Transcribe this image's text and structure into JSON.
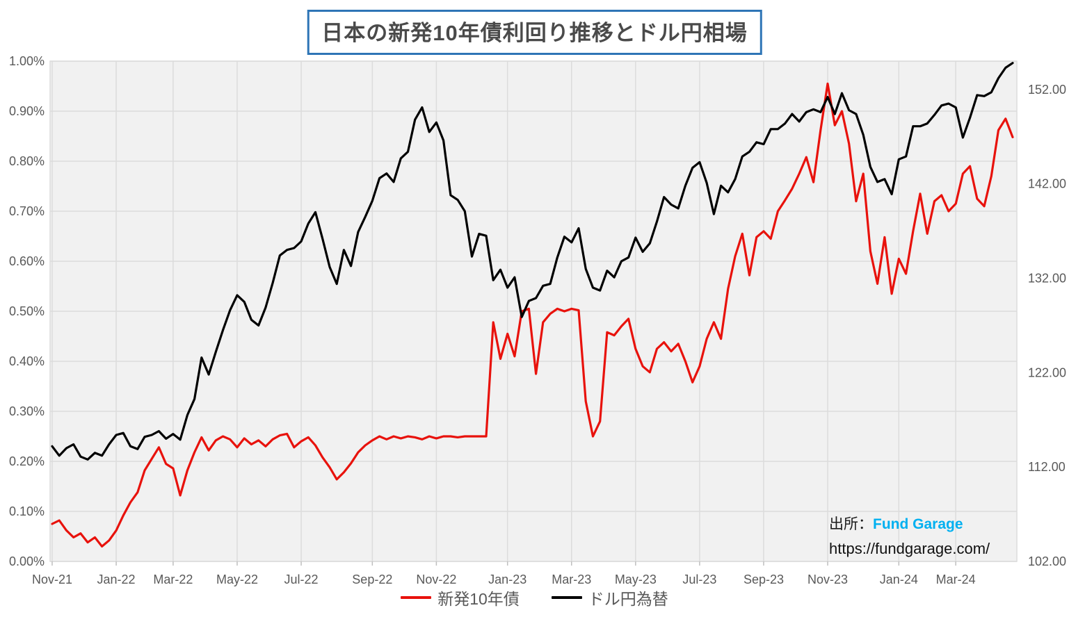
{
  "title": "日本の新発10年債利回り推移とドル円相場",
  "legend": {
    "bond_label": "新発10年債",
    "fx_label": "ドル円為替"
  },
  "source": {
    "prefix": "出所：",
    "brand": "Fund Garage",
    "url": "https://fundgarage.com/"
  },
  "colors": {
    "bond_line": "#e8120c",
    "fx_line": "#000000",
    "title_border": "#2e75b6",
    "title_text": "#4a4a4a",
    "axis_text": "#595959",
    "grid": "#dcdcdc",
    "plot_bg": "#f1f1f1",
    "brand_text": "#00b0f0",
    "page_bg": "#ffffff"
  },
  "chart_data": {
    "type": "line",
    "title": "日本の新発10年債利回り推移とドル円相場",
    "grid": true,
    "legend_position": "bottom",
    "left_axis": {
      "min": 0.0,
      "max": 1.0,
      "tick_labels": [
        "0.00%",
        "0.10%",
        "0.20%",
        "0.30%",
        "0.40%",
        "0.50%",
        "0.60%",
        "0.70%",
        "0.80%",
        "0.90%",
        "1.00%"
      ]
    },
    "right_axis": {
      "min": 102.0,
      "max": 155.0,
      "tick_values": [
        102,
        112,
        122,
        132,
        142,
        152
      ],
      "tick_labels": [
        "102.00",
        "112.00",
        "122.00",
        "132.00",
        "142.00",
        "152.00"
      ]
    },
    "x_tick_labels": [
      "Nov-21",
      "Jan-22",
      "Mar-22",
      "May-22",
      "Jul-22",
      "Sep-22",
      "Nov-22",
      "Jan-23",
      "Mar-23",
      "May-23",
      "Jul-23",
      "Sep-23",
      "Nov-23",
      "Jan-24",
      "Mar-24"
    ],
    "x_tick_indices": [
      0,
      9,
      17,
      26,
      35,
      45,
      54,
      64,
      73,
      82,
      91,
      100,
      109,
      119,
      127
    ],
    "x_range_note": "weekly samples, Nov 2021 - late Apr 2024",
    "series": [
      {
        "name": "新発10年債",
        "axis": "left",
        "color": "#e8120c",
        "unit": "%",
        "values": [
          0.075,
          0.082,
          0.062,
          0.048,
          0.056,
          0.038,
          0.048,
          0.03,
          0.042,
          0.062,
          0.092,
          0.118,
          0.138,
          0.182,
          0.205,
          0.228,
          0.195,
          0.186,
          0.132,
          0.182,
          0.218,
          0.248,
          0.222,
          0.242,
          0.25,
          0.244,
          0.228,
          0.246,
          0.234,
          0.242,
          0.23,
          0.244,
          0.252,
          0.255,
          0.228,
          0.24,
          0.248,
          0.232,
          0.208,
          0.188,
          0.164,
          0.178,
          0.196,
          0.218,
          0.232,
          0.242,
          0.25,
          0.244,
          0.25,
          0.246,
          0.25,
          0.248,
          0.244,
          0.25,
          0.246,
          0.25,
          0.25,
          0.248,
          0.25,
          0.25,
          0.25,
          0.25,
          0.478,
          0.405,
          0.455,
          0.41,
          0.5,
          0.505,
          0.375,
          0.478,
          0.495,
          0.505,
          0.5,
          0.505,
          0.502,
          0.32,
          0.25,
          0.28,
          0.458,
          0.452,
          0.47,
          0.485,
          0.425,
          0.39,
          0.378,
          0.425,
          0.438,
          0.42,
          0.435,
          0.4,
          0.358,
          0.39,
          0.445,
          0.478,
          0.445,
          0.545,
          0.61,
          0.655,
          0.572,
          0.648,
          0.66,
          0.645,
          0.7,
          0.722,
          0.745,
          0.775,
          0.808,
          0.758,
          0.862,
          0.955,
          0.872,
          0.9,
          0.835,
          0.72,
          0.775,
          0.62,
          0.555,
          0.648,
          0.535,
          0.605,
          0.575,
          0.66,
          0.735,
          0.655,
          0.72,
          0.732,
          0.7,
          0.715,
          0.775,
          0.79,
          0.725,
          0.71,
          0.77,
          0.862,
          0.885,
          0.848
        ]
      },
      {
        "name": "ドル円為替",
        "axis": "right",
        "color": "#000000",
        "unit": "JPY",
        "values": [
          114.2,
          113.2,
          114.0,
          114.4,
          113.1,
          112.8,
          113.5,
          113.2,
          114.4,
          115.4,
          115.6,
          114.2,
          113.9,
          115.2,
          115.4,
          115.8,
          115.0,
          115.5,
          114.9,
          117.5,
          119.2,
          123.6,
          121.8,
          124.2,
          126.5,
          128.6,
          130.2,
          129.5,
          127.6,
          127.0,
          128.9,
          131.5,
          134.4,
          135.0,
          135.2,
          135.9,
          137.8,
          139.0,
          136.2,
          133.2,
          131.4,
          135.0,
          133.3,
          136.9,
          138.5,
          140.2,
          142.6,
          143.1,
          142.2,
          144.7,
          145.4,
          148.8,
          150.1,
          147.5,
          148.5,
          146.6,
          140.8,
          140.3,
          139.1,
          134.3,
          136.7,
          136.5,
          131.8,
          132.9,
          131.0,
          132.1,
          127.9,
          129.6,
          129.9,
          131.2,
          131.4,
          134.2,
          136.4,
          135.8,
          137.3,
          133.0,
          131.0,
          130.7,
          132.8,
          132.1,
          133.8,
          134.2,
          136.3,
          134.8,
          135.7,
          138.0,
          140.6,
          139.8,
          139.4,
          141.8,
          143.7,
          144.3,
          142.1,
          138.8,
          141.8,
          141.1,
          142.5,
          144.9,
          145.4,
          146.4,
          146.2,
          147.8,
          147.8,
          148.4,
          149.4,
          148.6,
          149.6,
          149.9,
          149.6,
          151.2,
          149.4,
          151.6,
          149.8,
          149.4,
          147.2,
          143.8,
          142.2,
          142.5,
          140.9,
          144.6,
          144.9,
          148.1,
          148.1,
          148.4,
          149.3,
          150.3,
          150.5,
          150.1,
          146.9,
          149.0,
          151.4,
          151.3,
          151.7,
          153.2,
          154.3,
          154.8
        ]
      }
    ]
  }
}
